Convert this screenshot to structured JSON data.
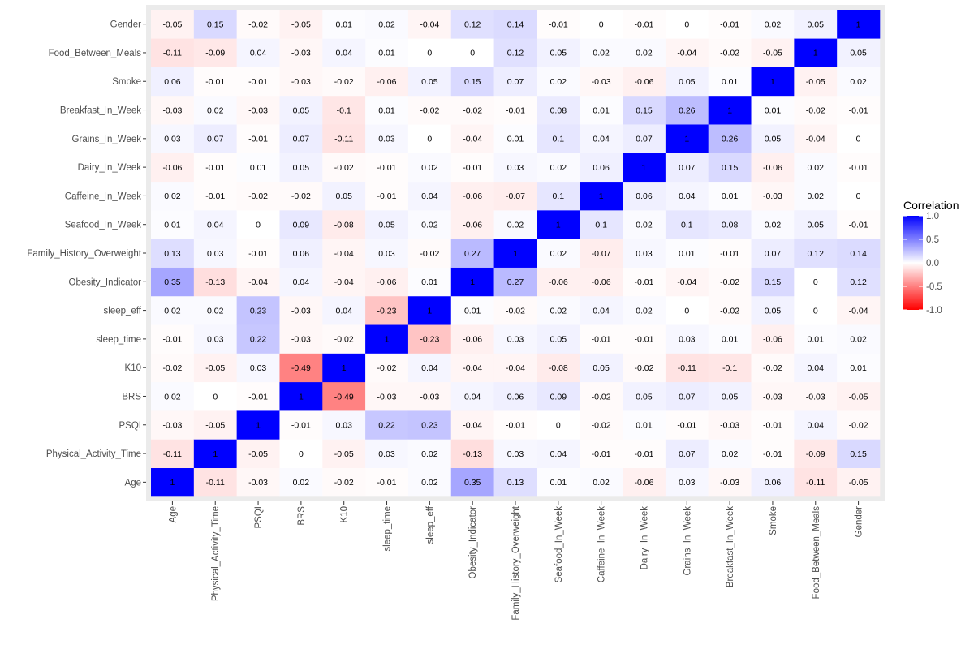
{
  "chart_data": {
    "type": "heatmap",
    "title": "",
    "xlabel": "",
    "ylabel": "",
    "variables": [
      "Age",
      "Physical_Activity_Time",
      "PSQI",
      "BRS",
      "K10",
      "sleep_time",
      "sleep_eff",
      "Obesity_Indicator",
      "Family_History_Overweight",
      "Seafood_In_Week",
      "Caffeine_In_Week",
      "Dairy_In_Week",
      "Grains_In_Week",
      "Breakfast_In_Week",
      "Smoke",
      "Food_Between_Meals",
      "Gender"
    ],
    "matrix": [
      [
        1,
        -0.11,
        -0.03,
        0.02,
        -0.02,
        -0.01,
        0.02,
        0.35,
        0.13,
        0.01,
        0.02,
        -0.06,
        0.03,
        -0.03,
        0.06,
        -0.11,
        -0.05
      ],
      [
        -0.11,
        1,
        -0.05,
        0,
        -0.05,
        0.03,
        0.02,
        -0.13,
        0.03,
        0.04,
        -0.01,
        -0.01,
        0.07,
        0.02,
        -0.01,
        -0.09,
        0.15
      ],
      [
        -0.03,
        -0.05,
        1,
        -0.01,
        0.03,
        0.22,
        0.23,
        -0.04,
        -0.01,
        0,
        -0.02,
        0.01,
        -0.01,
        -0.03,
        -0.01,
        0.04,
        -0.02
      ],
      [
        0.02,
        0,
        -0.01,
        1,
        -0.49,
        -0.03,
        -0.03,
        0.04,
        0.06,
        0.09,
        -0.02,
        0.05,
        0.07,
        0.05,
        -0.03,
        -0.03,
        -0.05
      ],
      [
        -0.02,
        -0.05,
        0.03,
        -0.49,
        1,
        -0.02,
        0.04,
        -0.04,
        -0.04,
        -0.08,
        0.05,
        -0.02,
        -0.11,
        -0.1,
        -0.02,
        0.04,
        0.01
      ],
      [
        -0.01,
        0.03,
        0.22,
        -0.03,
        -0.02,
        1,
        -0.23,
        -0.06,
        0.03,
        0.05,
        -0.01,
        -0.01,
        0.03,
        0.01,
        -0.06,
        0.01,
        0.02
      ],
      [
        0.02,
        0.02,
        0.23,
        -0.03,
        0.04,
        -0.23,
        1,
        0.01,
        -0.02,
        0.02,
        0.04,
        0.02,
        0,
        -0.02,
        0.05,
        0,
        -0.04
      ],
      [
        0.35,
        -0.13,
        -0.04,
        0.04,
        -0.04,
        -0.06,
        0.01,
        1,
        0.27,
        -0.06,
        -0.06,
        -0.01,
        -0.04,
        -0.02,
        0.15,
        0,
        0.12
      ],
      [
        0.13,
        0.03,
        -0.01,
        0.06,
        -0.04,
        0.03,
        -0.02,
        0.27,
        1,
        0.02,
        -0.07,
        0.03,
        0.01,
        -0.01,
        0.07,
        0.12,
        0.14
      ],
      [
        0.01,
        0.04,
        0,
        0.09,
        -0.08,
        0.05,
        0.02,
        -0.06,
        0.02,
        1,
        0.1,
        0.02,
        0.1,
        0.08,
        0.02,
        0.05,
        -0.01
      ],
      [
        0.02,
        -0.01,
        -0.02,
        -0.02,
        0.05,
        -0.01,
        0.04,
        -0.06,
        -0.07,
        0.1,
        1,
        0.06,
        0.04,
        0.01,
        -0.03,
        0.02,
        0
      ],
      [
        -0.06,
        -0.01,
        0.01,
        0.05,
        -0.02,
        -0.01,
        0.02,
        -0.01,
        0.03,
        0.02,
        0.06,
        1,
        0.07,
        0.15,
        -0.06,
        0.02,
        -0.01
      ],
      [
        0.03,
        0.07,
        -0.01,
        0.07,
        -0.11,
        0.03,
        0,
        -0.04,
        0.01,
        0.1,
        0.04,
        0.07,
        1,
        0.26,
        0.05,
        -0.04,
        0
      ],
      [
        -0.03,
        0.02,
        -0.03,
        0.05,
        -0.1,
        0.01,
        -0.02,
        -0.02,
        -0.01,
        0.08,
        0.01,
        0.15,
        0.26,
        1,
        0.01,
        -0.02,
        -0.01
      ],
      [
        0.06,
        -0.01,
        -0.01,
        -0.03,
        -0.02,
        -0.06,
        0.05,
        0.15,
        0.07,
        0.02,
        -0.03,
        -0.06,
        0.05,
        0.01,
        1,
        -0.05,
        0.02
      ],
      [
        -0.11,
        -0.09,
        0.04,
        -0.03,
        0.04,
        0.01,
        0,
        0,
        0.12,
        0.05,
        0.02,
        0.02,
        -0.04,
        -0.02,
        -0.05,
        1,
        0.05
      ],
      [
        -0.05,
        0.15,
        -0.02,
        -0.05,
        0.01,
        0.02,
        -0.04,
        0.12,
        0.14,
        -0.01,
        0,
        -0.01,
        0,
        -0.01,
        0.02,
        0.05,
        1
      ]
    ],
    "legend": {
      "title": "Correlation",
      "ticks": [
        1.0,
        0.5,
        0.0,
        -0.5,
        -1.0
      ],
      "tick_labels": [
        "1.0",
        "0.5",
        "0.0",
        "-0.5",
        "-1.0"
      ],
      "placement": "right"
    },
    "colors": {
      "high": "#0000ff",
      "mid": "#ffffff",
      "low": "#ff0000",
      "panel_background": "#ebebeb",
      "grid": "#ffffff"
    },
    "value_range": [
      -1,
      1
    ],
    "grid": true
  }
}
